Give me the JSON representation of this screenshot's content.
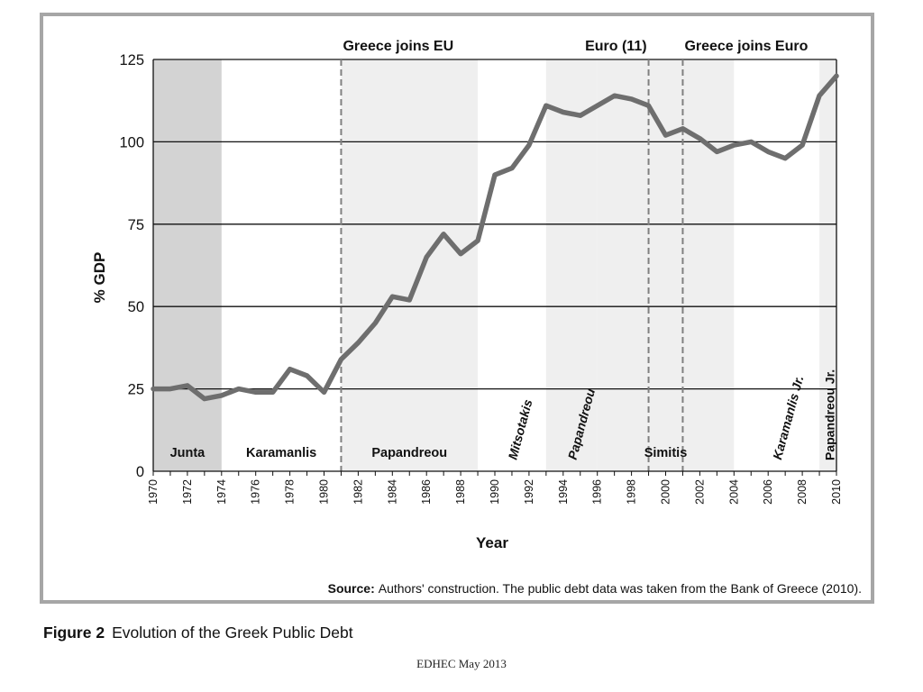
{
  "chart_data": {
    "type": "line",
    "ylabel": "% GDP",
    "xlabel": "Year",
    "xlim": [
      1970,
      2010
    ],
    "ylim": [
      0,
      125
    ],
    "yticks": [
      0,
      25,
      50,
      75,
      100,
      125
    ],
    "xticks": [
      1970,
      1972,
      1974,
      1976,
      1978,
      1980,
      1982,
      1984,
      1986,
      1988,
      1990,
      1992,
      1994,
      1996,
      1998,
      2000,
      2002,
      2004,
      2006,
      2008,
      2010
    ],
    "grid": "horizontal",
    "colors": {
      "line": "#6e6e6e",
      "band_dark": "#d3d3d3",
      "band_light": "#efefef",
      "gridline": "#111111",
      "event_line": "#808080"
    },
    "series": [
      {
        "x": [
          1970,
          1971,
          1972,
          1973,
          1974,
          1975,
          1976,
          1977,
          1978,
          1979,
          1980,
          1981,
          1982,
          1983,
          1984,
          1985,
          1986,
          1987,
          1988,
          1989,
          1990,
          1991,
          1992,
          1993,
          1994,
          1995,
          1996,
          1997,
          1998,
          1999,
          2000,
          2001,
          2002,
          2003,
          2004,
          2005,
          2006,
          2007,
          2008,
          2009,
          2010
        ],
        "values": [
          25,
          25,
          26,
          22,
          23,
          25,
          24,
          24,
          31,
          29,
          24,
          34,
          39,
          45,
          53,
          52,
          65,
          72,
          66,
          70,
          90,
          92,
          99,
          111,
          109,
          108,
          111,
          114,
          113,
          111,
          102,
          104,
          101,
          97,
          99,
          100,
          97,
          95,
          99,
          114,
          120
        ]
      }
    ],
    "periods": [
      {
        "label": "Junta",
        "start": 1970,
        "end": 1974,
        "shade": "dark",
        "rotated": false
      },
      {
        "label": "Karamanlis",
        "start": 1974,
        "end": 1981,
        "shade": "none",
        "rotated": false
      },
      {
        "label": "Papandreou",
        "start": 1981,
        "end": 1989,
        "shade": "light",
        "rotated": false
      },
      {
        "label": "Mitsotakis",
        "start": 1989,
        "end": 1993,
        "shade": "none",
        "rotated": true
      },
      {
        "label": "Papandreou",
        "start": 1993,
        "end": 1996,
        "shade": "light",
        "rotated": true
      },
      {
        "label": "Simitis",
        "start": 1996,
        "end": 2004,
        "shade": "light",
        "rotated": false
      },
      {
        "label": "Karamanlis Jr.",
        "start": 2004,
        "end": 2009,
        "shade": "none",
        "rotated": true
      },
      {
        "label": "Papandreou Jr.",
        "start": 2009,
        "end": 2010,
        "shade": "light",
        "rotated": true
      }
    ],
    "events": [
      {
        "label": "Greece joins EU",
        "x": 1981
      },
      {
        "label": "Euro (11)",
        "x": 1999
      },
      {
        "label": "Greece joins Euro",
        "x": 2001
      }
    ],
    "source_label": "Source:",
    "source_text": "Authors' construction. The public debt data was taken from the Bank of Greece (2010)."
  },
  "caption": {
    "figure_number": "Figure 2",
    "text": "Evolution of the Greek Public Debt"
  },
  "footer": "EDHEC May 2013"
}
